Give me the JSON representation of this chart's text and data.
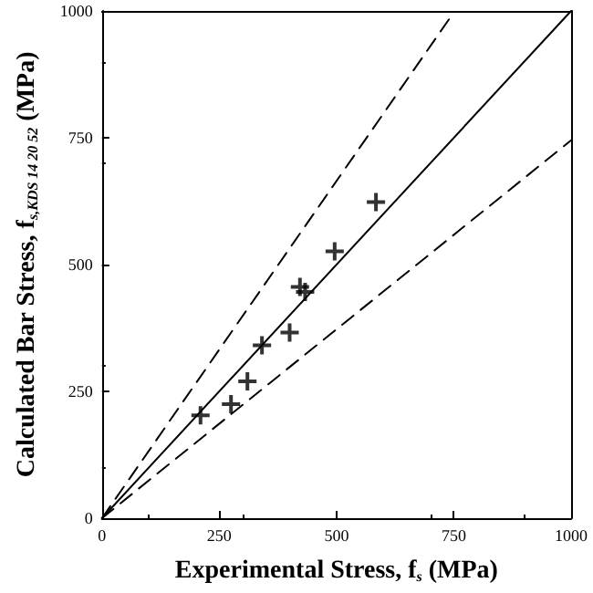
{
  "chart_data": {
    "type": "scatter",
    "xlabel": "Experimental Stress, f$_{s}$ (MPa)",
    "ylabel": "Calculated Bar Stress, f$_{s,KDS 14 20 52}$ (MPa)",
    "xlim": [
      0,
      1000
    ],
    "ylim": [
      0,
      1000
    ],
    "xticks": [
      0,
      250,
      500,
      750,
      1000
    ],
    "yticks": [
      0,
      250,
      500,
      750,
      1000
    ],
    "grid": false,
    "marker": "cross",
    "series": [
      {
        "type": "scatter",
        "color": "#000000",
        "x": [
          210,
          275,
          310,
          341,
          400,
          422,
          433,
          496,
          584
        ],
        "values": [
          203,
          225,
          270,
          341,
          366,
          456,
          446,
          526,
          623
        ]
      },
      {
        "type": "line",
        "color": "#000000",
        "line_style": "solid",
        "marker": "none",
        "x": [
          0,
          1000
        ],
        "values": [
          0,
          1000
        ]
      },
      {
        "type": "line",
        "color": "#000000",
        "line_style": "dashed",
        "marker": "none",
        "x": [
          0,
          740
        ],
        "values": [
          0,
          984
        ]
      },
      {
        "type": "line",
        "color": "#000000",
        "line_style": "dashed",
        "marker": "none",
        "x": [
          0,
          1000
        ],
        "values": [
          0,
          745
        ]
      }
    ]
  }
}
